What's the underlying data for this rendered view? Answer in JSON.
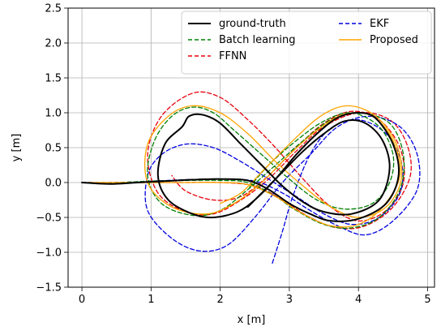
{
  "chart_data": {
    "type": "line",
    "xlabel": "x [m]",
    "ylabel": "y [m]",
    "xlim": [
      -0.2,
      5.1
    ],
    "ylim": [
      -1.5,
      2.5
    ],
    "xticks": [
      0,
      1,
      2,
      3,
      4,
      5
    ],
    "yticks": [
      -1.5,
      -1.0,
      -0.5,
      0.0,
      0.5,
      1.0,
      1.5,
      2.0,
      2.5
    ],
    "ytick_labels": [
      "−1.5",
      "−1.0",
      "−0.5",
      "0.0",
      "0.5",
      "1.0",
      "1.5",
      "2.0",
      "2.5"
    ],
    "grid": true,
    "legend_position": "top-right",
    "series": [
      {
        "name": "ground-truth",
        "color": "#000000",
        "style": "solid",
        "points": [
          [
            0,
            0
          ],
          [
            0.4,
            -0.02
          ],
          [
            0.8,
            0
          ],
          [
            1.2,
            0.02
          ],
          [
            1.6,
            0.04
          ],
          [
            2.0,
            0.05
          ],
          [
            2.4,
            0.03
          ],
          [
            2.7,
            -0.1
          ],
          [
            3.0,
            -0.3
          ],
          [
            3.3,
            -0.45
          ],
          [
            3.6,
            -0.55
          ],
          [
            4.0,
            -0.52
          ],
          [
            4.4,
            -0.3
          ],
          [
            4.58,
            0.1
          ],
          [
            4.5,
            0.55
          ],
          [
            4.25,
            0.92
          ],
          [
            4.0,
            1.0
          ],
          [
            3.7,
            0.93
          ],
          [
            3.4,
            0.7
          ],
          [
            3.1,
            0.4
          ],
          [
            2.8,
            0.05
          ],
          [
            2.5,
            -0.25
          ],
          [
            2.25,
            -0.42
          ],
          [
            1.9,
            -0.5
          ],
          [
            1.6,
            -0.45
          ],
          [
            1.25,
            -0.25
          ],
          [
            1.1,
            0.1
          ],
          [
            1.2,
            0.55
          ],
          [
            1.45,
            0.8
          ],
          [
            1.55,
            0.95
          ],
          [
            1.75,
            0.97
          ],
          [
            2.0,
            0.85
          ],
          [
            2.3,
            0.55
          ],
          [
            2.6,
            0.25
          ],
          [
            2.9,
            -0.05
          ],
          [
            3.2,
            -0.28
          ],
          [
            3.5,
            -0.42
          ],
          [
            3.9,
            -0.45
          ],
          [
            4.3,
            -0.25
          ],
          [
            4.45,
            0.2
          ],
          [
            4.35,
            0.6
          ],
          [
            4.1,
            0.85
          ],
          [
            3.8,
            0.88
          ],
          [
            3.5,
            0.7
          ],
          [
            3.2,
            0.45
          ],
          [
            2.9,
            0.15
          ],
          [
            2.6,
            -0.15
          ],
          [
            2.4,
            -0.35
          ]
        ]
      },
      {
        "name": "Batch learning",
        "color": "#008000",
        "style": "dashed",
        "points": [
          [
            0,
            0
          ],
          [
            0.5,
            0
          ],
          [
            1.0,
            0.02
          ],
          [
            1.5,
            0.03
          ],
          [
            2.0,
            0.03
          ],
          [
            2.4,
            0.0
          ],
          [
            2.8,
            -0.2
          ],
          [
            3.1,
            -0.4
          ],
          [
            3.5,
            -0.6
          ],
          [
            3.9,
            -0.65
          ],
          [
            4.3,
            -0.5
          ],
          [
            4.6,
            -0.1
          ],
          [
            4.65,
            0.4
          ],
          [
            4.45,
            0.85
          ],
          [
            4.0,
            1.0
          ],
          [
            3.6,
            0.9
          ],
          [
            3.2,
            0.6
          ],
          [
            2.8,
            0.25
          ],
          [
            2.4,
            -0.1
          ],
          [
            2.0,
            -0.4
          ],
          [
            1.6,
            -0.47
          ],
          [
            1.15,
            -0.3
          ],
          [
            0.95,
            0.1
          ],
          [
            1.05,
            0.6
          ],
          [
            1.3,
            0.95
          ],
          [
            1.6,
            1.08
          ],
          [
            1.9,
            1.0
          ],
          [
            2.2,
            0.75
          ],
          [
            2.6,
            0.4
          ],
          [
            3.0,
            0.05
          ],
          [
            3.4,
            -0.25
          ],
          [
            3.8,
            -0.38
          ],
          [
            4.2,
            -0.3
          ],
          [
            4.45,
            0.0
          ],
          [
            4.5,
            0.4
          ],
          [
            4.3,
            0.8
          ],
          [
            3.9,
            1.0
          ],
          [
            3.5,
            0.88
          ],
          [
            3.1,
            0.6
          ],
          [
            2.7,
            0.25
          ],
          [
            2.4,
            -0.1
          ]
        ]
      },
      {
        "name": "FFNN",
        "color": "#e8000b",
        "style": "dashed",
        "points": [
          [
            0,
            0
          ],
          [
            0.5,
            0
          ],
          [
            1.0,
            0.0
          ],
          [
            1.5,
            0.0
          ],
          [
            2.0,
            0.0
          ],
          [
            2.5,
            -0.05
          ],
          [
            2.9,
            -0.25
          ],
          [
            3.3,
            -0.5
          ],
          [
            3.7,
            -0.65
          ],
          [
            4.1,
            -0.62
          ],
          [
            4.5,
            -0.35
          ],
          [
            4.75,
            0.1
          ],
          [
            4.7,
            0.55
          ],
          [
            4.45,
            0.9
          ],
          [
            4.0,
            1.0
          ],
          [
            3.5,
            0.8
          ],
          [
            3.1,
            0.45
          ],
          [
            2.7,
            0.05
          ],
          [
            2.3,
            -0.25
          ],
          [
            1.9,
            -0.45
          ],
          [
            1.5,
            -0.42
          ],
          [
            1.1,
            -0.15
          ],
          [
            0.95,
            0.4
          ],
          [
            1.15,
            0.95
          ],
          [
            1.6,
            1.28
          ],
          [
            2.0,
            1.22
          ],
          [
            2.4,
            0.9
          ],
          [
            2.8,
            0.5
          ],
          [
            3.2,
            0.05
          ],
          [
            3.6,
            -0.35
          ],
          [
            4.0,
            -0.55
          ],
          [
            4.4,
            -0.4
          ],
          [
            4.65,
            0.0
          ],
          [
            4.6,
            0.5
          ],
          [
            4.3,
            0.9
          ],
          [
            3.9,
            1.02
          ],
          [
            3.5,
            0.85
          ],
          [
            3.1,
            0.5
          ],
          [
            2.7,
            0.1
          ],
          [
            2.3,
            -0.2
          ],
          [
            1.9,
            -0.25
          ],
          [
            1.5,
            -0.12
          ],
          [
            1.3,
            0.1
          ]
        ]
      },
      {
        "name": "EKF",
        "color": "#0000e0",
        "style": "dashed",
        "points": [
          [
            0,
            0
          ],
          [
            0.5,
            0
          ],
          [
            1.0,
            0.02
          ],
          [
            1.5,
            0.04
          ],
          [
            2.0,
            0.05
          ],
          [
            2.5,
            0.02
          ],
          [
            2.9,
            -0.15
          ],
          [
            3.3,
            -0.4
          ],
          [
            3.7,
            -0.62
          ],
          [
            4.1,
            -0.75
          ],
          [
            4.5,
            -0.55
          ],
          [
            4.85,
            -0.1
          ],
          [
            4.85,
            0.4
          ],
          [
            4.6,
            0.8
          ],
          [
            4.15,
            0.95
          ],
          [
            3.7,
            0.8
          ],
          [
            3.3,
            0.4
          ],
          [
            2.9,
            0.0
          ],
          [
            2.5,
            -0.5
          ],
          [
            2.1,
            -0.9
          ],
          [
            1.7,
            -0.98
          ],
          [
            1.3,
            -0.8
          ],
          [
            0.95,
            -0.4
          ],
          [
            0.95,
            0.1
          ],
          [
            1.15,
            0.4
          ],
          [
            1.5,
            0.55
          ],
          [
            1.9,
            0.5
          ],
          [
            2.3,
            0.3
          ],
          [
            2.7,
            0.05
          ],
          [
            3.1,
            -0.2
          ],
          [
            3.5,
            -0.45
          ],
          [
            3.9,
            -0.6
          ],
          [
            4.3,
            -0.5
          ],
          [
            4.6,
            -0.15
          ],
          [
            4.62,
            0.3
          ],
          [
            4.4,
            0.7
          ],
          [
            4.0,
            0.9
          ],
          [
            3.6,
            0.78
          ],
          [
            3.3,
            0.4
          ],
          [
            3.05,
            -0.2
          ],
          [
            2.9,
            -0.7
          ],
          [
            2.75,
            -1.17
          ]
        ]
      },
      {
        "name": "Proposed",
        "color": "#ffa500",
        "style": "solid",
        "points": [
          [
            0,
            0
          ],
          [
            0.5,
            0
          ],
          [
            1.0,
            0.0
          ],
          [
            1.5,
            0.0
          ],
          [
            2.0,
            0.0
          ],
          [
            2.4,
            -0.03
          ],
          [
            2.8,
            -0.2
          ],
          [
            3.2,
            -0.45
          ],
          [
            3.6,
            -0.62
          ],
          [
            4.0,
            -0.6
          ],
          [
            4.35,
            -0.35
          ],
          [
            4.6,
            0.1
          ],
          [
            4.5,
            0.6
          ],
          [
            4.2,
            0.95
          ],
          [
            3.8,
            0.98
          ],
          [
            3.4,
            0.75
          ],
          [
            3.0,
            0.4
          ],
          [
            2.6,
            0.0
          ],
          [
            2.2,
            -0.3
          ],
          [
            1.8,
            -0.45
          ],
          [
            1.3,
            -0.35
          ],
          [
            0.95,
            0.0
          ],
          [
            0.95,
            0.55
          ],
          [
            1.25,
            0.95
          ],
          [
            1.6,
            1.1
          ],
          [
            2.0,
            1.0
          ],
          [
            2.4,
            0.7
          ],
          [
            2.8,
            0.3
          ],
          [
            3.2,
            -0.05
          ],
          [
            3.6,
            -0.35
          ],
          [
            4.0,
            -0.5
          ],
          [
            4.4,
            -0.35
          ],
          [
            4.62,
            0.05
          ],
          [
            4.55,
            0.55
          ],
          [
            4.25,
            0.95
          ],
          [
            3.85,
            1.1
          ],
          [
            3.45,
            0.95
          ],
          [
            3.0,
            0.55
          ],
          [
            2.6,
            0.15
          ],
          [
            2.3,
            -0.15
          ],
          [
            2.0,
            -0.3
          ]
        ]
      }
    ]
  }
}
